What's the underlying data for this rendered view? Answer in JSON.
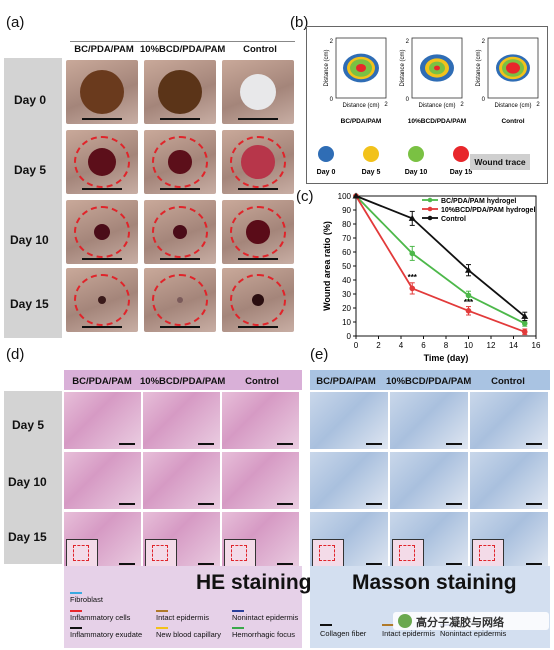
{
  "panels": {
    "a": "(a)",
    "b": "(b)",
    "c": "(c)",
    "d": "(d)",
    "e": "(e)"
  },
  "panel_a": {
    "columns": [
      "BC/PDA/PAM",
      "10%BCD/PDA/PAM",
      "Control"
    ],
    "days": [
      "Day 0",
      "Day 5",
      "Day 10",
      "Day 15"
    ]
  },
  "panel_b": {
    "ylabel": "Distance (cm)",
    "xlabel": "Distance (cm)",
    "tick_max": "2",
    "tick_zero": "0",
    "titles": [
      "BC/PDA/PAM",
      "10%BCD/PDA/PAM",
      "Control"
    ],
    "legend": [
      {
        "label": "Day 0",
        "color": "#2f6db5"
      },
      {
        "label": "Day 5",
        "color": "#f2c21b"
      },
      {
        "label": "Day 10",
        "color": "#7ac143"
      },
      {
        "label": "Day 15",
        "color": "#e8262b"
      }
    ],
    "wound_trace": "Wound trace"
  },
  "chart_data": {
    "type": "line",
    "xlabel": "Time (day)",
    "ylabel": "Wound area ratio (%)",
    "x": [
      0,
      5,
      10,
      15
    ],
    "xlim": [
      0,
      16
    ],
    "ylim": [
      0,
      100
    ],
    "xticks": [
      0,
      2,
      4,
      6,
      8,
      10,
      12,
      14,
      16
    ],
    "yticks": [
      0,
      10,
      20,
      30,
      40,
      50,
      60,
      70,
      80,
      90,
      100
    ],
    "series": [
      {
        "name": "BC/PDA/PAM hydrogel",
        "color": "#4db84a",
        "values": [
          100,
          59,
          29,
          9
        ],
        "err": [
          0,
          5,
          3,
          2
        ]
      },
      {
        "name": "10%BCD/PDA/PAM hydrogel",
        "color": "#e23a3a",
        "values": [
          100,
          34,
          18,
          3
        ],
        "err": [
          0,
          4,
          3,
          2
        ]
      },
      {
        "name": "Control",
        "color": "#111111",
        "values": [
          100,
          84,
          47,
          14
        ],
        "err": [
          0,
          5,
          4,
          3
        ]
      }
    ],
    "annotations": [
      "***",
      "***"
    ],
    "legend": "top-right"
  },
  "panel_d": {
    "columns": [
      "BC/PDA/PAM",
      "10%BCD/PDA/PAM",
      "Control"
    ],
    "days": [
      "Day 5",
      "Day 10",
      "Day 15"
    ],
    "stain": "HE staining",
    "legend": [
      {
        "label": "Fibroblast",
        "color": "#3aa9e0"
      },
      {
        "label": "Inflammatory cells",
        "color": "#e8262b"
      },
      {
        "label": "Intact epidermis",
        "color": "#b07a2a"
      },
      {
        "label": "Nonintact epidermis",
        "color": "#2a3f9a"
      },
      {
        "label": "Inflammatory exudate",
        "color": "#111111"
      },
      {
        "label": "New blood capillary",
        "color": "#f2c21b"
      },
      {
        "label": "Hemorrhagic focus",
        "color": "#3aa94a"
      }
    ]
  },
  "panel_e": {
    "columns": [
      "BC/PDA/PAM",
      "10%BCD/PDA/PAM",
      "Control"
    ],
    "stain": "Masson staining",
    "legend": [
      {
        "label": "Collagen fiber",
        "color": "#111111"
      },
      {
        "label": "Intact epidermis",
        "color": "#b07a2a"
      },
      {
        "label": "Nonintact epidermis",
        "color": "#2a3f9a"
      }
    ]
  },
  "watermark": "高分子凝胶与网络"
}
